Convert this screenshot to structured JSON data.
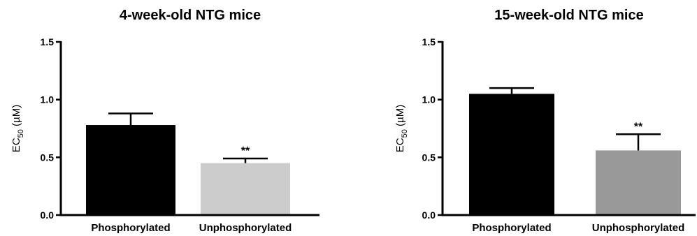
{
  "chart_data": [
    {
      "type": "bar",
      "title": "4-week-old NTG mice",
      "ylabel": {
        "prefix": "EC",
        "subscript": "50",
        "suffix": " (µM)"
      },
      "categories": [
        "Phosphorylated",
        "Unphosphorylated"
      ],
      "values": [
        0.78,
        0.45
      ],
      "errors": [
        0.1,
        0.04
      ],
      "bar_colors": [
        "#000000",
        "#cccccc"
      ],
      "annotations": [
        "",
        "**"
      ],
      "ylim": [
        0,
        1.5
      ],
      "yticks": [
        0.0,
        0.5,
        1.0,
        1.5
      ],
      "ytick_labels": [
        "0.0",
        "0.5",
        "1.0",
        "1.5"
      ]
    },
    {
      "type": "bar",
      "title": "15-week-old NTG mice",
      "ylabel": {
        "prefix": "EC",
        "subscript": "50",
        "suffix": " (µM)"
      },
      "categories": [
        "Phosphorylated",
        "Unphosphorylated"
      ],
      "values": [
        1.05,
        0.56
      ],
      "errors": [
        0.05,
        0.14
      ],
      "bar_colors": [
        "#000000",
        "#999999"
      ],
      "annotations": [
        "",
        "**"
      ],
      "ylim": [
        0,
        1.5
      ],
      "yticks": [
        0.0,
        0.5,
        1.0,
        1.5
      ],
      "ytick_labels": [
        "0.0",
        "0.5",
        "1.0",
        "1.5"
      ]
    }
  ]
}
